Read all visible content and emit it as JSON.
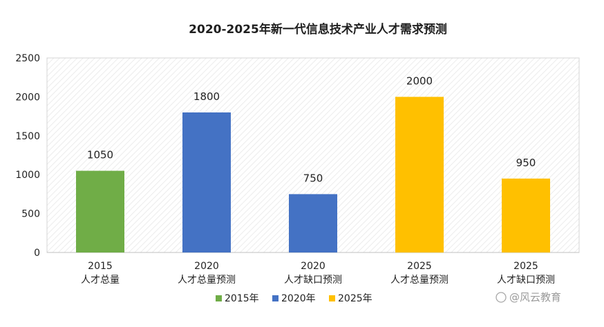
{
  "chart_data": {
    "type": "bar",
    "title": "2020-2025年新一代信息技术产业人才需求预测",
    "categories": [
      {
        "line1": "2015",
        "line2": "人才总量"
      },
      {
        "line1": "2020",
        "line2": "人才总量预测"
      },
      {
        "line1": "2020",
        "line2": "人才缺口预测"
      },
      {
        "line1": "2025",
        "line2": "人才总量预测"
      },
      {
        "line1": "2025",
        "line2": "人才缺口预测"
      }
    ],
    "values": [
      1050,
      1800,
      750,
      2000,
      950
    ],
    "data_labels": [
      "1050",
      "1800",
      "750",
      "2000",
      "950"
    ],
    "bar_series": [
      "2015年",
      "2020年",
      "2020年",
      "2025年",
      "2025年"
    ],
    "series": [
      {
        "name": "2015年",
        "color": "#70ad47"
      },
      {
        "name": "2020年",
        "color": "#4472c4"
      },
      {
        "name": "2025年",
        "color": "#ffc000"
      }
    ],
    "ylim": [
      0,
      2500
    ],
    "yticks": [
      0,
      500,
      1000,
      1500,
      2000,
      2500
    ],
    "ytick_labels": [
      "0",
      "500",
      "1000",
      "1500",
      "2000",
      "2500"
    ],
    "grid": false,
    "legend_position": "bottom"
  },
  "watermark": "@风云教育"
}
